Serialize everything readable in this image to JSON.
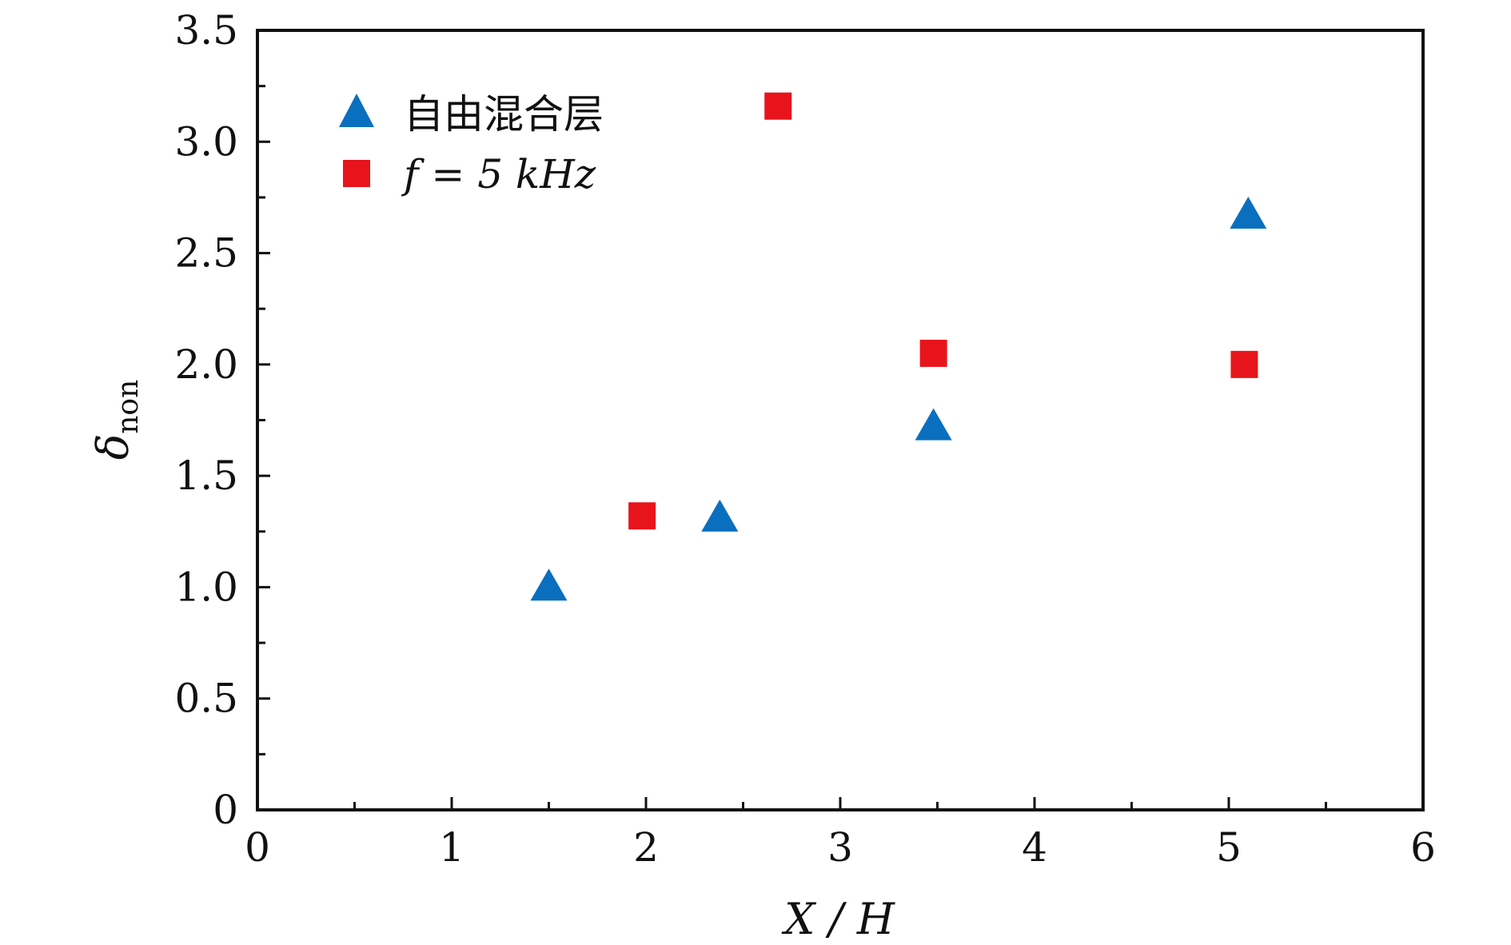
{
  "chart_data": {
    "type": "scatter",
    "xlabel": "X / H",
    "ylabel_main": "δ",
    "ylabel_sub": "non",
    "xlim": [
      0,
      6
    ],
    "ylim": [
      0,
      3.5
    ],
    "x_ticks": [
      "0",
      "1",
      "2",
      "3",
      "4",
      "5",
      "6"
    ],
    "y_ticks": [
      "0",
      "0.5",
      "1.0",
      "1.5",
      "2.0",
      "2.5",
      "3.0",
      "3.5"
    ],
    "x_tick_values": [
      0,
      1,
      2,
      3,
      4,
      5,
      6
    ],
    "y_tick_values": [
      0,
      0.5,
      1.0,
      1.5,
      2.0,
      2.5,
      3.0,
      3.5
    ],
    "grid": false,
    "legend_position": "top-left",
    "series": [
      {
        "name": "自由混合层",
        "marker": "triangle",
        "color": "#0a6fbf",
        "points": [
          {
            "x": 1.5,
            "y": 1.0
          },
          {
            "x": 2.38,
            "y": 1.31
          },
          {
            "x": 3.48,
            "y": 1.72
          },
          {
            "x": 5.1,
            "y": 2.67
          }
        ]
      },
      {
        "name": "f = 5 kHz",
        "marker": "square",
        "color": "#e8141b",
        "points": [
          {
            "x": 1.98,
            "y": 1.32
          },
          {
            "x": 2.68,
            "y": 3.16
          },
          {
            "x": 3.48,
            "y": 2.05
          },
          {
            "x": 5.08,
            "y": 2.0
          }
        ]
      }
    ]
  }
}
